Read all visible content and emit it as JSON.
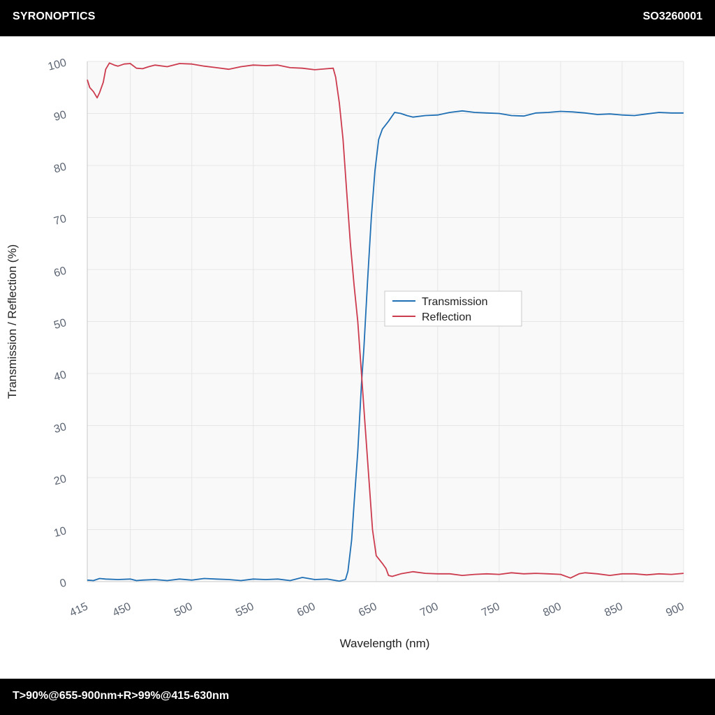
{
  "header": {
    "brand": "SYRONOPTICS",
    "code": "SO3260001"
  },
  "footer": {
    "spec": "T>90%@655-900nm+R>99%@415-630nm"
  },
  "colors": {
    "transmission": "#1f6fb4",
    "reflection": "#cc3b4e",
    "plot_bg": "#f9f9f9",
    "grid": "#e6e6e6"
  },
  "chart_data": {
    "type": "line",
    "title": "",
    "xlabel": "Wavelength (nm)",
    "ylabel": "Transmission / Reflection (%)",
    "xlim": [
      415,
      900
    ],
    "ylim": [
      0,
      100
    ],
    "x_ticks": [
      415,
      450,
      500,
      550,
      600,
      650,
      700,
      750,
      800,
      850,
      900
    ],
    "y_ticks": [
      0,
      10,
      20,
      30,
      40,
      50,
      60,
      70,
      80,
      90,
      100
    ],
    "grid": true,
    "legend_position": "center",
    "series": [
      {
        "name": "Transmission",
        "color": "#1f6fb4",
        "points": [
          [
            415,
            0.3
          ],
          [
            420,
            0.2
          ],
          [
            425,
            0.6
          ],
          [
            430,
            0.5
          ],
          [
            440,
            0.4
          ],
          [
            450,
            0.5
          ],
          [
            455,
            0.2
          ],
          [
            460,
            0.3
          ],
          [
            470,
            0.4
          ],
          [
            480,
            0.2
          ],
          [
            490,
            0.5
          ],
          [
            500,
            0.3
          ],
          [
            510,
            0.6
          ],
          [
            520,
            0.5
          ],
          [
            530,
            0.4
          ],
          [
            540,
            0.2
          ],
          [
            550,
            0.5
          ],
          [
            560,
            0.4
          ],
          [
            570,
            0.5
          ],
          [
            580,
            0.2
          ],
          [
            590,
            0.8
          ],
          [
            600,
            0.4
          ],
          [
            610,
            0.5
          ],
          [
            620,
            0.1
          ],
          [
            625,
            0.4
          ],
          [
            627,
            2
          ],
          [
            630,
            8
          ],
          [
            632,
            15
          ],
          [
            635,
            25
          ],
          [
            638,
            38
          ],
          [
            640,
            45
          ],
          [
            643,
            58
          ],
          [
            646,
            70
          ],
          [
            649,
            79
          ],
          [
            652,
            85
          ],
          [
            655,
            87
          ],
          [
            660,
            88.5
          ],
          [
            665,
            90.2
          ],
          [
            670,
            90
          ],
          [
            675,
            89.6
          ],
          [
            680,
            89.3
          ],
          [
            690,
            89.6
          ],
          [
            700,
            89.7
          ],
          [
            710,
            90.2
          ],
          [
            720,
            90.5
          ],
          [
            730,
            90.2
          ],
          [
            740,
            90.1
          ],
          [
            750,
            90
          ],
          [
            760,
            89.6
          ],
          [
            770,
            89.5
          ],
          [
            780,
            90.1
          ],
          [
            790,
            90.2
          ],
          [
            800,
            90.4
          ],
          [
            810,
            90.3
          ],
          [
            820,
            90.1
          ],
          [
            830,
            89.8
          ],
          [
            840,
            89.9
          ],
          [
            850,
            89.7
          ],
          [
            860,
            89.6
          ],
          [
            870,
            89.9
          ],
          [
            880,
            90.2
          ],
          [
            890,
            90.1
          ],
          [
            900,
            90.1
          ]
        ]
      },
      {
        "name": "Reflection",
        "color": "#cc3b4e",
        "points": [
          [
            415,
            96.5
          ],
          [
            417,
            95
          ],
          [
            420,
            94.2
          ],
          [
            423,
            93
          ],
          [
            425,
            94
          ],
          [
            428,
            96
          ],
          [
            430,
            98.5
          ],
          [
            433,
            99.7
          ],
          [
            437,
            99.3
          ],
          [
            440,
            99.1
          ],
          [
            445,
            99.5
          ],
          [
            450,
            99.6
          ],
          [
            455,
            98.7
          ],
          [
            460,
            98.6
          ],
          [
            465,
            99
          ],
          [
            470,
            99.3
          ],
          [
            480,
            99
          ],
          [
            490,
            99.6
          ],
          [
            500,
            99.5
          ],
          [
            510,
            99.1
          ],
          [
            520,
            98.8
          ],
          [
            530,
            98.5
          ],
          [
            540,
            99
          ],
          [
            550,
            99.3
          ],
          [
            560,
            99.2
          ],
          [
            570,
            99.3
          ],
          [
            580,
            98.8
          ],
          [
            590,
            98.7
          ],
          [
            600,
            98.4
          ],
          [
            610,
            98.6
          ],
          [
            615,
            98.7
          ],
          [
            617,
            97
          ],
          [
            620,
            92
          ],
          [
            623,
            85
          ],
          [
            626,
            75
          ],
          [
            629,
            65
          ],
          [
            632,
            57
          ],
          [
            635,
            50
          ],
          [
            638,
            40
          ],
          [
            641,
            30
          ],
          [
            644,
            20
          ],
          [
            647,
            10
          ],
          [
            650,
            5
          ],
          [
            655,
            3.5
          ],
          [
            658,
            2.5
          ],
          [
            660,
            1.2
          ],
          [
            663,
            1
          ],
          [
            670,
            1.5
          ],
          [
            680,
            1.9
          ],
          [
            690,
            1.6
          ],
          [
            700,
            1.5
          ],
          [
            710,
            1.5
          ],
          [
            720,
            1.2
          ],
          [
            730,
            1.4
          ],
          [
            740,
            1.5
          ],
          [
            750,
            1.4
          ],
          [
            760,
            1.7
          ],
          [
            770,
            1.5
          ],
          [
            780,
            1.6
          ],
          [
            790,
            1.5
          ],
          [
            800,
            1.4
          ],
          [
            808,
            0.7
          ],
          [
            815,
            1.5
          ],
          [
            820,
            1.7
          ],
          [
            830,
            1.5
          ],
          [
            840,
            1.2
          ],
          [
            850,
            1.5
          ],
          [
            860,
            1.5
          ],
          [
            870,
            1.3
          ],
          [
            880,
            1.5
          ],
          [
            890,
            1.4
          ],
          [
            900,
            1.6
          ]
        ]
      }
    ]
  }
}
